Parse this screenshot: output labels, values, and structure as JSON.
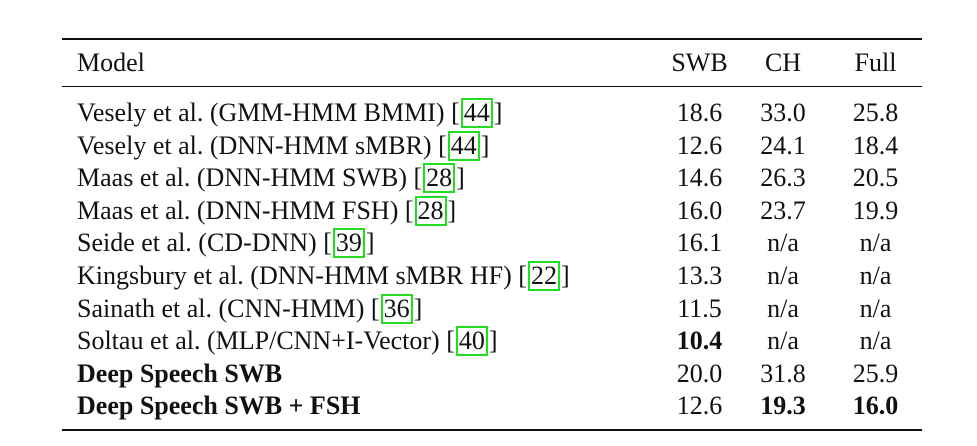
{
  "table": {
    "headers": {
      "model": "Model",
      "swb": "SWB",
      "ch": "CH",
      "full": "Full"
    },
    "rows": [
      {
        "model": "Vesely et al. (GMM-HMM BMMI) [",
        "cite": "44",
        "close": "]",
        "swb": "18.6",
        "ch": "33.0",
        "full": "25.8"
      },
      {
        "model": "Vesely et al. (DNN-HMM sMBR) [",
        "cite": "44",
        "close": "]",
        "swb": "12.6",
        "ch": "24.1",
        "full": "18.4"
      },
      {
        "model": "Maas et al. (DNN-HMM SWB) [",
        "cite": "28",
        "close": "]",
        "swb": "14.6",
        "ch": "26.3",
        "full": "20.5"
      },
      {
        "model": "Maas et al. (DNN-HMM FSH) [",
        "cite": "28",
        "close": "]",
        "swb": "16.0",
        "ch": "23.7",
        "full": "19.9"
      },
      {
        "model": "Seide et al. (CD-DNN) [",
        "cite": "39",
        "close": "]",
        "swb": "16.1",
        "ch": "n/a",
        "full": "n/a"
      },
      {
        "model": "Kingsbury et al. (DNN-HMM sMBR HF) [",
        "cite": "22",
        "close": "]",
        "swb": "13.3",
        "ch": "n/a",
        "full": "n/a"
      },
      {
        "model": "Sainath et al. (CNN-HMM) [",
        "cite": "36",
        "close": "]",
        "swb": "11.5",
        "ch": "n/a",
        "full": "n/a"
      },
      {
        "model": "Soltau et al. (MLP/CNN+I-Vector) [",
        "cite": "40",
        "close": "]",
        "swb": "10.4",
        "ch": "n/a",
        "full": "n/a"
      },
      {
        "model": "Deep Speech SWB",
        "swb": "20.0",
        "ch": "31.8",
        "full": "25.9"
      },
      {
        "model": "Deep Speech SWB + FSH",
        "swb": "12.6",
        "ch": "19.3",
        "full": "16.0"
      }
    ]
  }
}
